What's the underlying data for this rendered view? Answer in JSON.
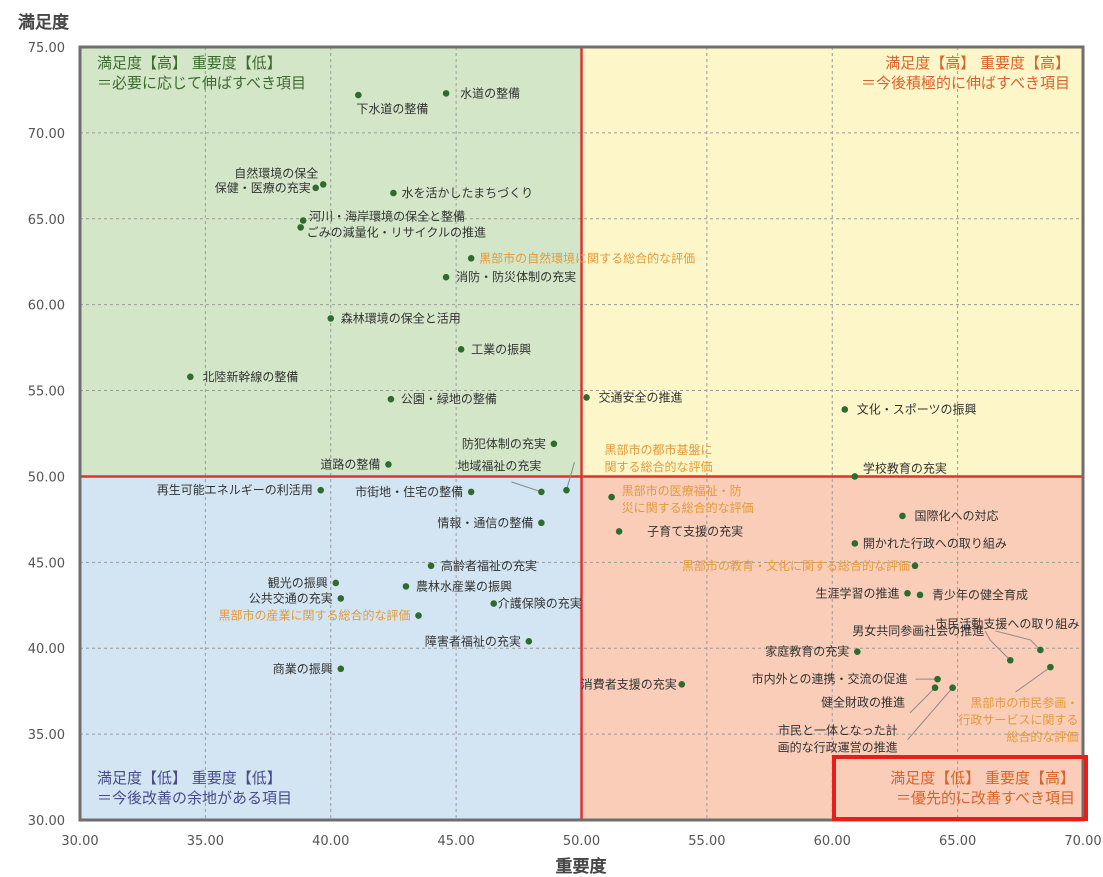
{
  "chart_data": {
    "type": "scatter",
    "xlabel": "重要度",
    "ylabel": "満足度",
    "xlim": [
      30,
      70
    ],
    "ylim": [
      30,
      75
    ],
    "x_ticks": [
      "30.00",
      "35.00",
      "40.00",
      "45.00",
      "50.00",
      "55.00",
      "60.00",
      "65.00",
      "70.00"
    ],
    "y_ticks": [
      "30.00",
      "35.00",
      "40.00",
      "45.00",
      "50.00",
      "55.00",
      "60.00",
      "65.00",
      "70.00",
      "75.00"
    ],
    "grid": true,
    "dividers": {
      "x": 50,
      "y": 50
    },
    "quadrants": [
      {
        "id": "top-left",
        "line1": "満足度【高】 重要度【低】",
        "line2": "＝必要に応じて伸ばすべき項目",
        "color": "#d3e6c8",
        "text_color": "#3d6b2f"
      },
      {
        "id": "top-right",
        "line1": "満足度【高】 重要度【高】",
        "line2": "＝今後積極的に伸ばすべき項目",
        "color": "#fdf6c9",
        "text_color": "#d9632a"
      },
      {
        "id": "bottom-left",
        "line1": "満足度【低】 重要度【低】",
        "line2": "＝今後改善の余地がある項目",
        "color": "#d3e5f2",
        "text_color": "#4a4a8a"
      },
      {
        "id": "bottom-right",
        "line1": "満足度【低】 重要度【高】",
        "line2": "＝優先的に改善すべき項目",
        "color": "#f9cdb8",
        "text_color": "#d9632a"
      }
    ],
    "points": [
      {
        "label": "水道の整備",
        "x": 44.6,
        "y": 72.3,
        "lines": [
          "水道の整備"
        ]
      },
      {
        "label": "下水道の整備",
        "x": 41.1,
        "y": 72.2,
        "lines": [
          "下水道の整備"
        ]
      },
      {
        "label": "自然環境の保全",
        "x": 39.7,
        "y": 67.0,
        "lines": [
          "自然環境の保全"
        ]
      },
      {
        "label": "保健・医療の充実",
        "x": 39.4,
        "y": 66.8,
        "lines": [
          "保健・医療の充実"
        ]
      },
      {
        "label": "水を活かしたまちづくり",
        "x": 42.5,
        "y": 66.5,
        "lines": [
          "水を活かしたまちづくり"
        ]
      },
      {
        "label": "河川・海岸環境の保全と整備",
        "x": 38.9,
        "y": 64.9,
        "lines": [
          "河川・海岸環境の保全と整備"
        ]
      },
      {
        "label": "ごみの減量化・リサイクルの推進",
        "x": 38.8,
        "y": 64.5,
        "lines": [
          "ごみの減量化・リサイクルの推進"
        ]
      },
      {
        "label": "黒部市の自然環境に関する総合的な評価",
        "x": 45.6,
        "y": 62.7,
        "lines": [
          "黒部市の自然環境に関する総合的な評価"
        ],
        "summary": true
      },
      {
        "label": "消防・防災体制の充実",
        "x": 44.6,
        "y": 61.6,
        "lines": [
          "消防・防災体制の充実"
        ]
      },
      {
        "label": "森林環境の保全と活用",
        "x": 40.0,
        "y": 59.2,
        "lines": [
          "森林環境の保全と活用"
        ]
      },
      {
        "label": "工業の振興",
        "x": 45.2,
        "y": 57.4,
        "lines": [
          "工業の振興"
        ]
      },
      {
        "label": "北陸新幹線の整備",
        "x": 34.4,
        "y": 55.8,
        "lines": [
          "北陸新幹線の整備"
        ]
      },
      {
        "label": "公園・緑地の整備",
        "x": 42.4,
        "y": 54.5,
        "lines": [
          "公園・緑地の整備"
        ]
      },
      {
        "label": "交通安全の推進",
        "x": 50.2,
        "y": 54.6,
        "lines": [
          "交通安全の推進"
        ]
      },
      {
        "label": "文化・スポーツの振興",
        "x": 60.5,
        "y": 53.9,
        "lines": [
          "文化・スポーツの振興"
        ]
      },
      {
        "label": "防犯体制の充実",
        "x": 48.9,
        "y": 51.9,
        "lines": [
          "防犯体制の充実"
        ]
      },
      {
        "label": "道路の整備",
        "x": 42.3,
        "y": 50.7,
        "lines": [
          "道路の整備"
        ]
      },
      {
        "label": "黒部市の都市基盤に関する総合的な評価",
        "x": 49.4,
        "y": 49.2,
        "lines": [
          "黒部市の都市基盤に",
          "関する総合的な評価"
        ],
        "summary": true
      },
      {
        "label": "地域福祉の充実",
        "x": 48.4,
        "y": 49.1,
        "lines": [
          "地域福祉の充実"
        ]
      },
      {
        "label": "学校教育の充実",
        "x": 60.9,
        "y": 50.0,
        "lines": [
          "学校教育の充実"
        ]
      },
      {
        "label": "再生可能エネルギーの利活用",
        "x": 39.6,
        "y": 49.2,
        "lines": [
          "再生可能エネルギーの利活用"
        ]
      },
      {
        "label": "市街地・住宅の整備",
        "x": 45.6,
        "y": 49.1,
        "lines": [
          "市街地・住宅の整備"
        ]
      },
      {
        "label": "黒部市の医療福祉・防災に関する総合的な評価",
        "x": 51.2,
        "y": 48.8,
        "lines": [
          "黒部市の医療福祉・防",
          "災に関する総合的な評価"
        ],
        "summary": true
      },
      {
        "label": "国際化への対応",
        "x": 62.8,
        "y": 47.7,
        "lines": [
          "国際化への対応"
        ]
      },
      {
        "label": "情報・通信の整備",
        "x": 48.4,
        "y": 47.3,
        "lines": [
          "情報・通信の整備"
        ]
      },
      {
        "label": "子育て支援の充実",
        "x": 51.5,
        "y": 46.8,
        "lines": [
          "子育て支援の充実"
        ]
      },
      {
        "label": "開かれた行政への取り組み",
        "x": 60.9,
        "y": 46.1,
        "lines": [
          "開かれた行政への取り組み"
        ]
      },
      {
        "label": "黒部市の教育・文化に関する総合的な評価",
        "x": 63.3,
        "y": 44.8,
        "lines": [
          "黒部市の教育・文化に関する総合的な評価"
        ],
        "summary": true
      },
      {
        "label": "高齢者福祉の充実",
        "x": 44.0,
        "y": 44.8,
        "lines": [
          "高齢者福祉の充実"
        ]
      },
      {
        "label": "観光の振興",
        "x": 40.2,
        "y": 43.8,
        "lines": [
          "観光の振興"
        ]
      },
      {
        "label": "農林水産業の振興",
        "x": 43.0,
        "y": 43.6,
        "lines": [
          "農林水産業の振興"
        ]
      },
      {
        "label": "生涯学習の推進",
        "x": 63.0,
        "y": 43.2,
        "lines": [
          "生涯学習の推進"
        ]
      },
      {
        "label": "青少年の健全育成",
        "x": 63.5,
        "y": 43.1,
        "lines": [
          "青少年の健全育成"
        ]
      },
      {
        "label": "公共交通の充実",
        "x": 40.4,
        "y": 42.9,
        "lines": [
          "公共交通の充実"
        ]
      },
      {
        "label": "介護保険の充実",
        "x": 46.5,
        "y": 42.6,
        "lines": [
          "介護保険の充実"
        ]
      },
      {
        "label": "黒部市の産業に関する総合的な評価",
        "x": 43.5,
        "y": 41.9,
        "lines": [
          "黒部市の産業に関する総合的な評価"
        ],
        "summary": true
      },
      {
        "label": "障害者福祉の充実",
        "x": 47.9,
        "y": 40.4,
        "lines": [
          "障害者福祉の充実"
        ]
      },
      {
        "label": "市民活動支援への取り組み",
        "x": 68.3,
        "y": 39.9,
        "lines": [
          "市民活動支援への取り組み"
        ]
      },
      {
        "label": "家庭教育の充実",
        "x": 61.0,
        "y": 39.8,
        "lines": [
          "家庭教育の充実"
        ]
      },
      {
        "label": "男女共同参画社会の推進",
        "x": 67.1,
        "y": 39.3,
        "lines": [
          "男女共同参画社会の推進"
        ]
      },
      {
        "label": "黒部市の市民参画・行政サービスに関する総合的な評価",
        "x": 68.7,
        "y": 38.9,
        "lines": [
          "黒部市の市民参画・",
          "行政サービスに関する",
          "総合的な評価"
        ],
        "summary": true
      },
      {
        "label": "商業の振興",
        "x": 40.4,
        "y": 38.8,
        "lines": [
          "商業の振興"
        ]
      },
      {
        "label": "市内外との連携・交流の促進",
        "x": 64.2,
        "y": 38.2,
        "lines": [
          "市内外との連携・交流の促進"
        ]
      },
      {
        "label": "消費者支援の充実",
        "x": 54.0,
        "y": 37.9,
        "lines": [
          "消費者支援の充実"
        ]
      },
      {
        "label": "健全財政の推進",
        "x": 64.1,
        "y": 37.7,
        "lines": [
          "健全財政の推進"
        ]
      },
      {
        "label": "市民と一体となった計画的な行政運営の推進",
        "x": 64.8,
        "y": 37.7,
        "lines": [
          "市民と一体となった計",
          "画的な行政運営の推進"
        ]
      }
    ]
  },
  "colors": {
    "frame": "#6e6e6e",
    "divider": "#e0332d",
    "grid": "#9a9a9a",
    "point": "#2e6b2e",
    "label": "#333333",
    "summary_label": "#e39a3a",
    "highlight": "#e61e1e"
  }
}
